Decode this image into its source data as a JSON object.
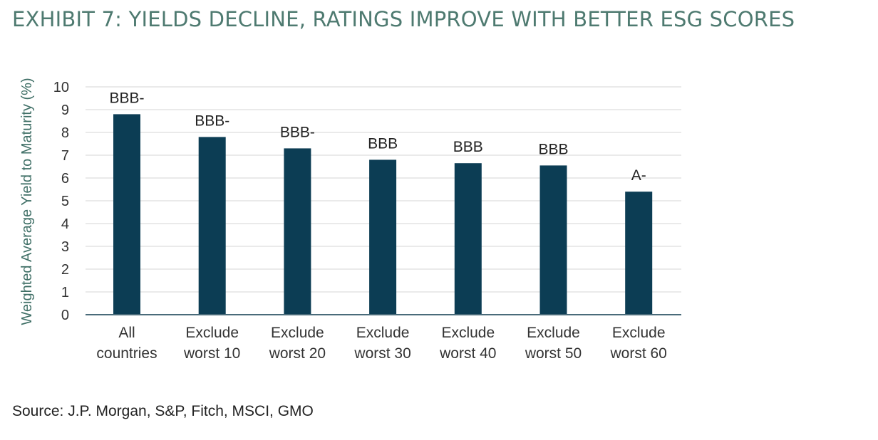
{
  "header": {
    "title": "EXHIBIT 7: YIELDS DECLINE, RATINGS IMPROVE WITH BETTER ESG SCORES"
  },
  "footer": {
    "source": "Source: J.P. Morgan, S&P, Fitch, MSCI, GMO"
  },
  "colors": {
    "title": "#4e7a70",
    "bar": "#0c3d54",
    "axis_label": "#3f6f66",
    "grid": "#e3e3e3",
    "axis_line": "#4a6b7a"
  },
  "chart_data": {
    "type": "bar",
    "ylabel": "Weighted Average Yield to Maturity (%)",
    "ylim": [
      0,
      10
    ],
    "yticks": [
      0,
      1,
      2,
      3,
      4,
      5,
      6,
      7,
      8,
      9,
      10
    ],
    "grid": true,
    "categories": [
      [
        "All",
        "countries"
      ],
      [
        "Exclude",
        "worst 10"
      ],
      [
        "Exclude",
        "worst 20"
      ],
      [
        "Exclude",
        "worst 30"
      ],
      [
        "Exclude",
        "worst 40"
      ],
      [
        "Exclude",
        "worst 50"
      ],
      [
        "Exclude",
        "worst 60"
      ]
    ],
    "values": [
      8.8,
      7.8,
      7.3,
      6.8,
      6.65,
      6.55,
      5.4
    ],
    "data_labels": [
      "BBB-",
      "BBB-",
      "BBB-",
      "BBB",
      "BBB",
      "BBB",
      "A-"
    ]
  }
}
